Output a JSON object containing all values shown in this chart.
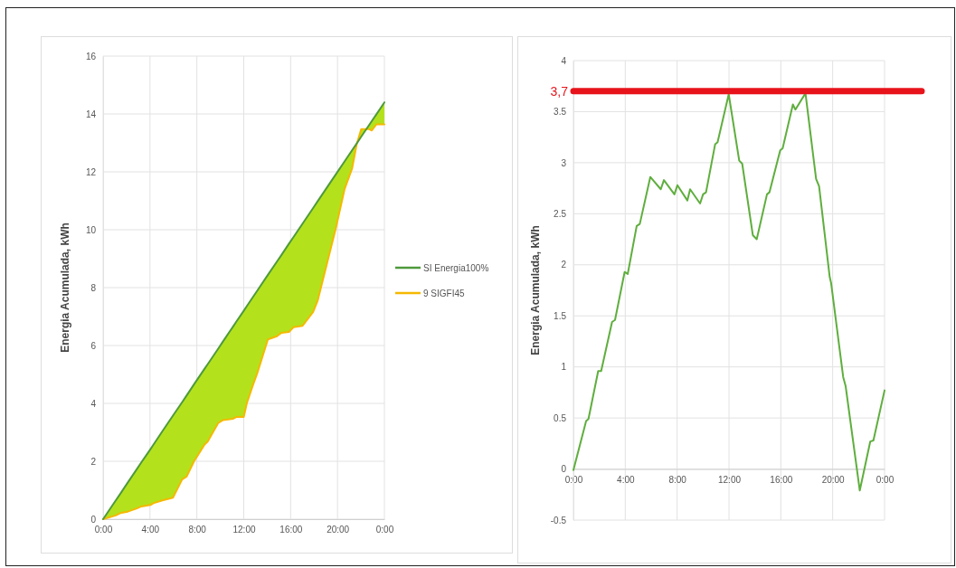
{
  "chart_data": [
    {
      "type": "line",
      "ylabel": "Energia Acumulada, kWh",
      "x": [
        0,
        1.08,
        1.47,
        2.11,
        2.88,
        3.26,
        4.04,
        4.29,
        5.06,
        5.96,
        6.74,
        7.12,
        7.76,
        8.66,
        8.92,
        9.82,
        10.21,
        11.1,
        11.36,
        12.0,
        12.26,
        12.78,
        13.16,
        14.06,
        14.83,
        15.22,
        15.86,
        16.25,
        17.02,
        17.92,
        18.3,
        19.85,
        20.6,
        21.25,
        21.64,
        22.03,
        22.67,
        22.93,
        23.32,
        24.0
      ],
      "series": [
        {
          "name": "SI Energia100%",
          "color": "#4e9a3c",
          "values": [
            0,
            0.65,
            0.88,
            1.27,
            1.73,
            1.96,
            2.42,
            2.57,
            3.04,
            3.58,
            4.04,
            4.27,
            4.66,
            5.2,
            5.35,
            5.89,
            6.13,
            6.66,
            6.82,
            7.2,
            7.36,
            7.67,
            7.9,
            8.44,
            8.9,
            9.13,
            9.52,
            9.75,
            10.21,
            10.75,
            10.98,
            11.91,
            12.36,
            12.75,
            12.98,
            13.22,
            13.6,
            13.76,
            13.99,
            14.4
          ],
          "lower": [
            0,
            0.13,
            0.21,
            0.26,
            0.37,
            0.44,
            0.49,
            0.55,
            0.65,
            0.74,
            1.37,
            1.47,
            2.0,
            2.58,
            2.68,
            3.32,
            3.42,
            3.47,
            3.53,
            3.53,
            4.0,
            4.63,
            5.05,
            6.21,
            6.32,
            6.44,
            6.47,
            6.63,
            6.68,
            7.16,
            7.54,
            10.04,
            11.4,
            12.12,
            12.96,
            13.48,
            13.48,
            13.43,
            13.64,
            13.64
          ],
          "upper": [
            0,
            0.65,
            0.88,
            1.27,
            1.73,
            1.96,
            2.42,
            2.57,
            3.04,
            3.58,
            4.04,
            4.27,
            4.66,
            5.2,
            5.35,
            5.89,
            6.13,
            6.66,
            6.82,
            7.2,
            7.36,
            7.67,
            7.9,
            8.44,
            8.9,
            9.13,
            9.52,
            9.75,
            10.21,
            10.75,
            10.98,
            11.91,
            12.36,
            12.75,
            12.98,
            13.22,
            13.6,
            13.76,
            13.99,
            14.4
          ]
        },
        {
          "name": "9 SIGFI45",
          "color": "#f5b800",
          "values": [
            0,
            0.13,
            0.21,
            0.26,
            0.37,
            0.44,
            0.49,
            0.55,
            0.65,
            0.74,
            1.37,
            1.47,
            2.0,
            2.58,
            2.68,
            3.32,
            3.42,
            3.47,
            3.53,
            3.53,
            4.0,
            4.63,
            5.05,
            6.21,
            6.32,
            6.44,
            6.47,
            6.63,
            6.68,
            7.16,
            7.54,
            10.04,
            11.4,
            12.12,
            12.96,
            13.48,
            13.48,
            13.43,
            13.64,
            13.64
          ]
        }
      ],
      "xlim": [
        0,
        24
      ],
      "xticks": [
        {
          "value": 0,
          "label": "0:00"
        },
        {
          "value": 4,
          "label": "4:00"
        },
        {
          "value": 8,
          "label": "8:00"
        },
        {
          "value": 12,
          "label": "12:00"
        },
        {
          "value": 16,
          "label": "16:00"
        },
        {
          "value": 20,
          "label": "20:00"
        },
        {
          "value": 24,
          "label": "0:00"
        }
      ],
      "ylim": [
        0,
        16
      ],
      "yticks": [
        0,
        2,
        4,
        6,
        8,
        10,
        12,
        14,
        16
      ],
      "grid": true,
      "legend": "right"
    },
    {
      "type": "line",
      "ylabel": "Energia Acumulada, kWh",
      "x": [
        0,
        0.98,
        1.16,
        1.91,
        2.14,
        2.98,
        3.21,
        3.95,
        4.19,
        4.88,
        5.12,
        5.93,
        6.74,
        6.98,
        7.79,
        8.02,
        8.79,
        9.0,
        9.77,
        10.0,
        10.23,
        10.93,
        11.12,
        11.98,
        12.79,
        13.02,
        13.84,
        14.14,
        14.93,
        15.12,
        15.95,
        16.14,
        16.93,
        17.12,
        17.9,
        18.72,
        18.95,
        19.77,
        19.88,
        20.81,
        21.0,
        22.09,
        22.9,
        23.14,
        24.0
      ],
      "series": [
        {
          "color": "#5fae3e",
          "values": [
            -0.01,
            0.47,
            0.49,
            0.96,
            0.96,
            1.44,
            1.46,
            1.93,
            1.91,
            2.38,
            2.4,
            2.86,
            2.74,
            2.83,
            2.69,
            2.78,
            2.63,
            2.74,
            2.6,
            2.69,
            2.71,
            3.18,
            3.2,
            3.67,
            3.02,
            2.99,
            2.29,
            2.25,
            2.69,
            2.71,
            3.12,
            3.14,
            3.57,
            3.52,
            3.68,
            2.84,
            2.77,
            1.88,
            1.82,
            0.9,
            0.81,
            -0.21,
            0.27,
            0.28,
            0.77
          ]
        }
      ],
      "xlim": [
        0,
        24
      ],
      "xticks": [
        {
          "value": 0,
          "label": "0:00"
        },
        {
          "value": 4,
          "label": "4:00"
        },
        {
          "value": 8,
          "label": "8:00"
        },
        {
          "value": 12,
          "label": "12:00"
        },
        {
          "value": 16,
          "label": "16:00"
        },
        {
          "value": 20,
          "label": "20:00"
        },
        {
          "value": 24,
          "label": "0:00"
        }
      ],
      "ylim": [
        -0.5,
        4
      ],
      "yticks": [
        -0.5,
        0,
        0.5,
        1,
        1.5,
        2,
        2.5,
        3,
        3.5,
        4
      ],
      "grid": true,
      "ref_lines": [
        {
          "axis": "y",
          "value": 3.7,
          "label": "3,7",
          "color": "#e8141c"
        }
      ]
    }
  ]
}
